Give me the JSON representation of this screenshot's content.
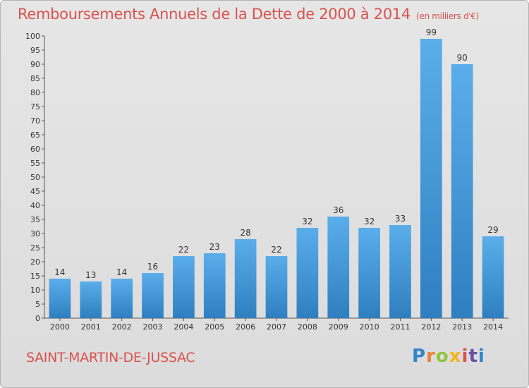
{
  "title": "Remboursements Annuels de la Dette de 2000 à 2014",
  "unit": "(en milliers d'€)",
  "commune": "SAINT-MARTIN-DE-JUSSAC",
  "logo": "Proxiti",
  "colors": {
    "accent": "#d9534f",
    "bar_top": "#5aaeea",
    "bar_bottom": "#2f7fc0"
  },
  "chart_data": {
    "type": "bar",
    "title": "Remboursements Annuels de la Dette de 2000 à 2014",
    "ylabel": "en milliers d'€",
    "xlabel": "",
    "categories": [
      "2000",
      "2001",
      "2002",
      "2003",
      "2004",
      "2005",
      "2006",
      "2007",
      "2008",
      "2009",
      "2010",
      "2011",
      "2012",
      "2013",
      "2014"
    ],
    "values": [
      14,
      13,
      14,
      16,
      22,
      23,
      28,
      22,
      32,
      36,
      32,
      33,
      99,
      90,
      29
    ],
    "ylim": [
      0,
      100
    ],
    "yticks": [
      0,
      5,
      10,
      15,
      20,
      25,
      30,
      35,
      40,
      45,
      50,
      55,
      60,
      65,
      70,
      75,
      80,
      85,
      90,
      95,
      100
    ],
    "grid": false
  }
}
